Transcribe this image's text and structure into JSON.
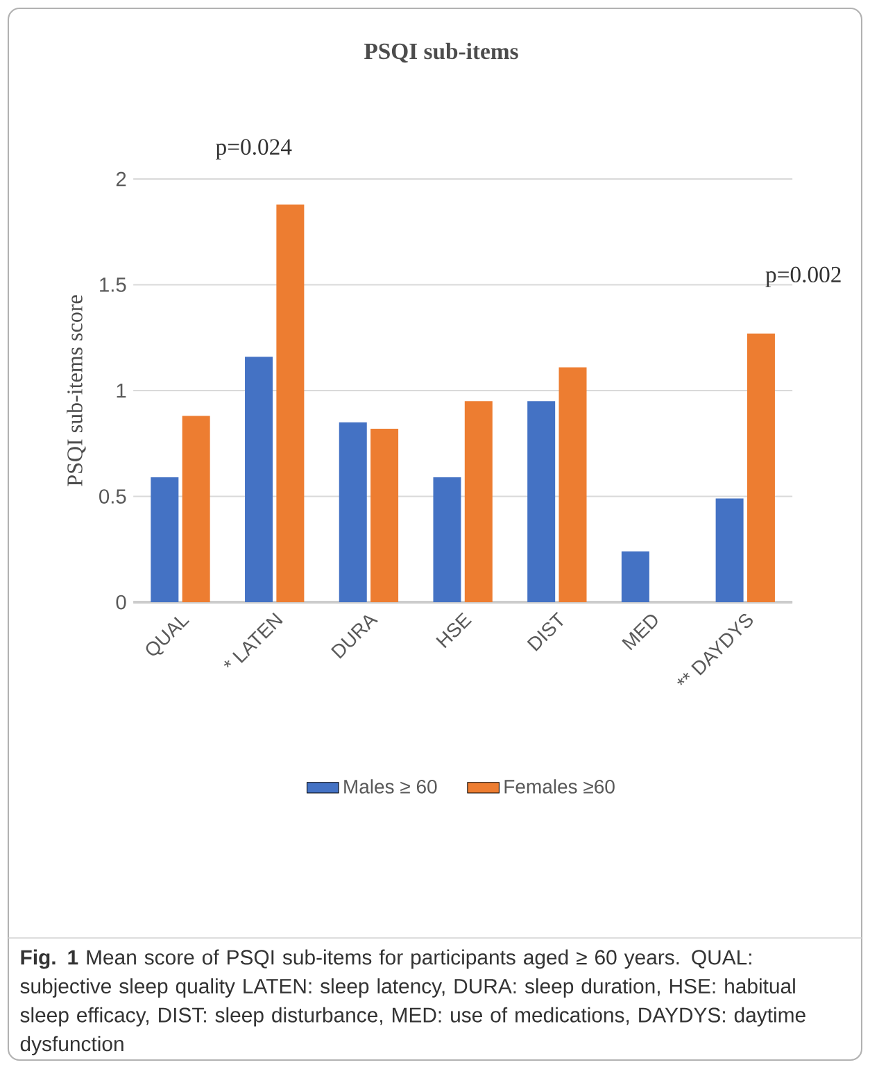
{
  "chart_data": {
    "type": "bar",
    "title": "PSQI sub-items",
    "ylabel": "PSQI sub-items score",
    "categories": [
      "QUAL",
      "* LATEN",
      "DURA",
      "HSE",
      "DIST",
      "MED",
      "** DAYDYS"
    ],
    "series": [
      {
        "name": "Males ≥ 60",
        "color": "#4472c4",
        "values": [
          0.59,
          1.16,
          0.85,
          0.59,
          0.95,
          0.24,
          0.49
        ]
      },
      {
        "name": "Females ≥60",
        "color": "#ed7d31",
        "values": [
          0.88,
          1.88,
          0.82,
          0.95,
          1.11,
          0,
          1.27
        ]
      }
    ],
    "ylim": [
      0,
      2
    ],
    "yticks": [
      0,
      0.5,
      1,
      1.5,
      2
    ],
    "grid": "y",
    "legend": "bottom",
    "annotations": [
      "p=0.024",
      "p=0.002",
      "**Fig. 1** Mean score of PSQI sub-items for participants aged ≥ 60 years. QUAL: subjective sleep quality LATEN: sleep latency, DURA: sleep duration, HSE: habitual sleep efficacy, DIST: sleep disturbance, MED: use of medications, DAYDYS: daytime dysfunction"
    ]
  }
}
